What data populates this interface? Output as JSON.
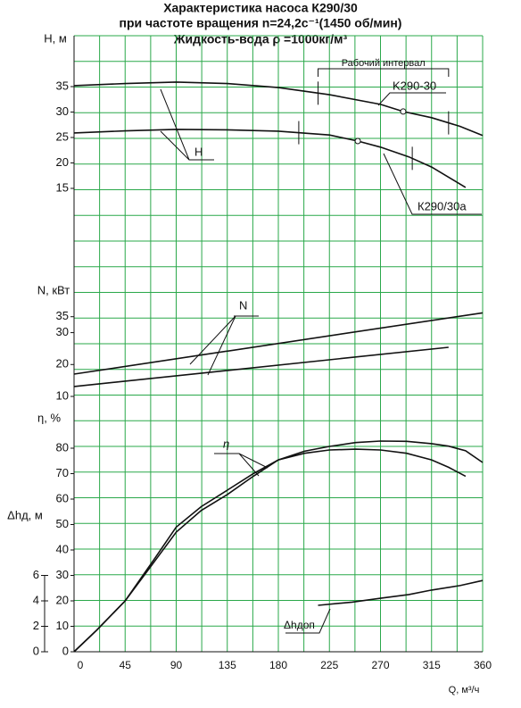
{
  "chart_data": {
    "type": "line",
    "title": [
      "Характеристика насоса К290/30",
      "при частоте вращения n=24,2с⁻¹(1450 об/мин)",
      "Жидкость-вода ρ =1000кг/м³"
    ],
    "xlabel": "Q, м³/ч",
    "xlim": [
      0,
      360
    ],
    "xticks": [
      0,
      45,
      90,
      135,
      180,
      225,
      270,
      315,
      360
    ],
    "grid": true,
    "range_label": "Рабочий интервал",
    "axes": [
      {
        "label": "H, м",
        "ylim": [
          15,
          45
        ],
        "yticks": [
          15,
          20,
          25,
          30,
          35
        ],
        "curve_label": "H",
        "series": [
          {
            "name": "K290-30",
            "color": "#111111",
            "x": [
              0,
              45,
              90,
              135,
              180,
              225,
              270,
              290,
              315,
              340,
              360
            ],
            "values": [
              35.2,
              35.6,
              35.9,
              35.6,
              34.8,
              33.4,
              31.5,
              30.1,
              28.9,
              27.2,
              25.4
            ],
            "range": [
              215,
              330
            ],
            "point": [
              290,
              30.1
            ]
          },
          {
            "name": "К290/30а",
            "color": "#111111",
            "x": [
              0,
              45,
              90,
              135,
              180,
              225,
              250,
              270,
              295,
              315,
              345
            ],
            "values": [
              25.9,
              26.3,
              26.6,
              26.5,
              26.25,
              25.5,
              24.3,
              23.1,
              21.2,
              19.2,
              15.2
            ],
            "range": [
              198,
              298
            ],
            "point": [
              250,
              24.3
            ]
          }
        ]
      },
      {
        "label": "N, кВт",
        "ylim": [
          10,
          38
        ],
        "yticks": [
          10,
          20,
          30,
          35
        ],
        "curve_label": "N",
        "series": [
          {
            "color": "#111111",
            "x": [
              0,
              360
            ],
            "values": [
              17.0,
              36.2
            ]
          },
          {
            "color": "#111111",
            "x": [
              0,
              330
            ],
            "values": [
              13.1,
              25.4
            ]
          }
        ]
      },
      {
        "label": "η, %",
        "ylim": [
          0,
          85
        ],
        "yticks": [
          0,
          10,
          20,
          30,
          40,
          50,
          60,
          70,
          80
        ],
        "curve_label": "η",
        "series": [
          {
            "color": "#111111",
            "x": [
              0,
              20,
              45,
              70,
              90,
              112,
              135,
              158,
              180,
              203,
              225,
              248,
              270,
              293,
              315,
              330,
              345,
              360
            ],
            "values": [
              0,
              8.5,
              20,
              36,
              49,
              57,
              63.5,
              70,
              75.4,
              78.8,
              80.7,
              82.2,
              82.8,
              82.7,
              81.8,
              80.8,
              79,
              74.4
            ]
          },
          {
            "color": "#111111",
            "x": [
              0,
              20,
              45,
              70,
              90,
              112,
              135,
              158,
              180,
              203,
              225,
              248,
              270,
              293,
              315,
              330,
              345
            ],
            "values": [
              0,
              8.5,
              20,
              35,
              47,
              55.5,
              61.8,
              69,
              75.4,
              78,
              79.3,
              79.6,
              79.3,
              78,
              75.4,
              72.5,
              69
            ]
          }
        ]
      },
      {
        "label": "Δhд, м",
        "ylim": [
          0,
          6
        ],
        "yticks": [
          0,
          2,
          4,
          6
        ],
        "curve_label": "Δhдоп",
        "series": [
          {
            "color": "#111111",
            "x": [
              215,
              245,
              270,
              295,
              315,
              340,
              360
            ],
            "values": [
              3.65,
              3.9,
              4.2,
              4.5,
              4.85,
              5.2,
              5.6
            ]
          }
        ]
      }
    ]
  }
}
